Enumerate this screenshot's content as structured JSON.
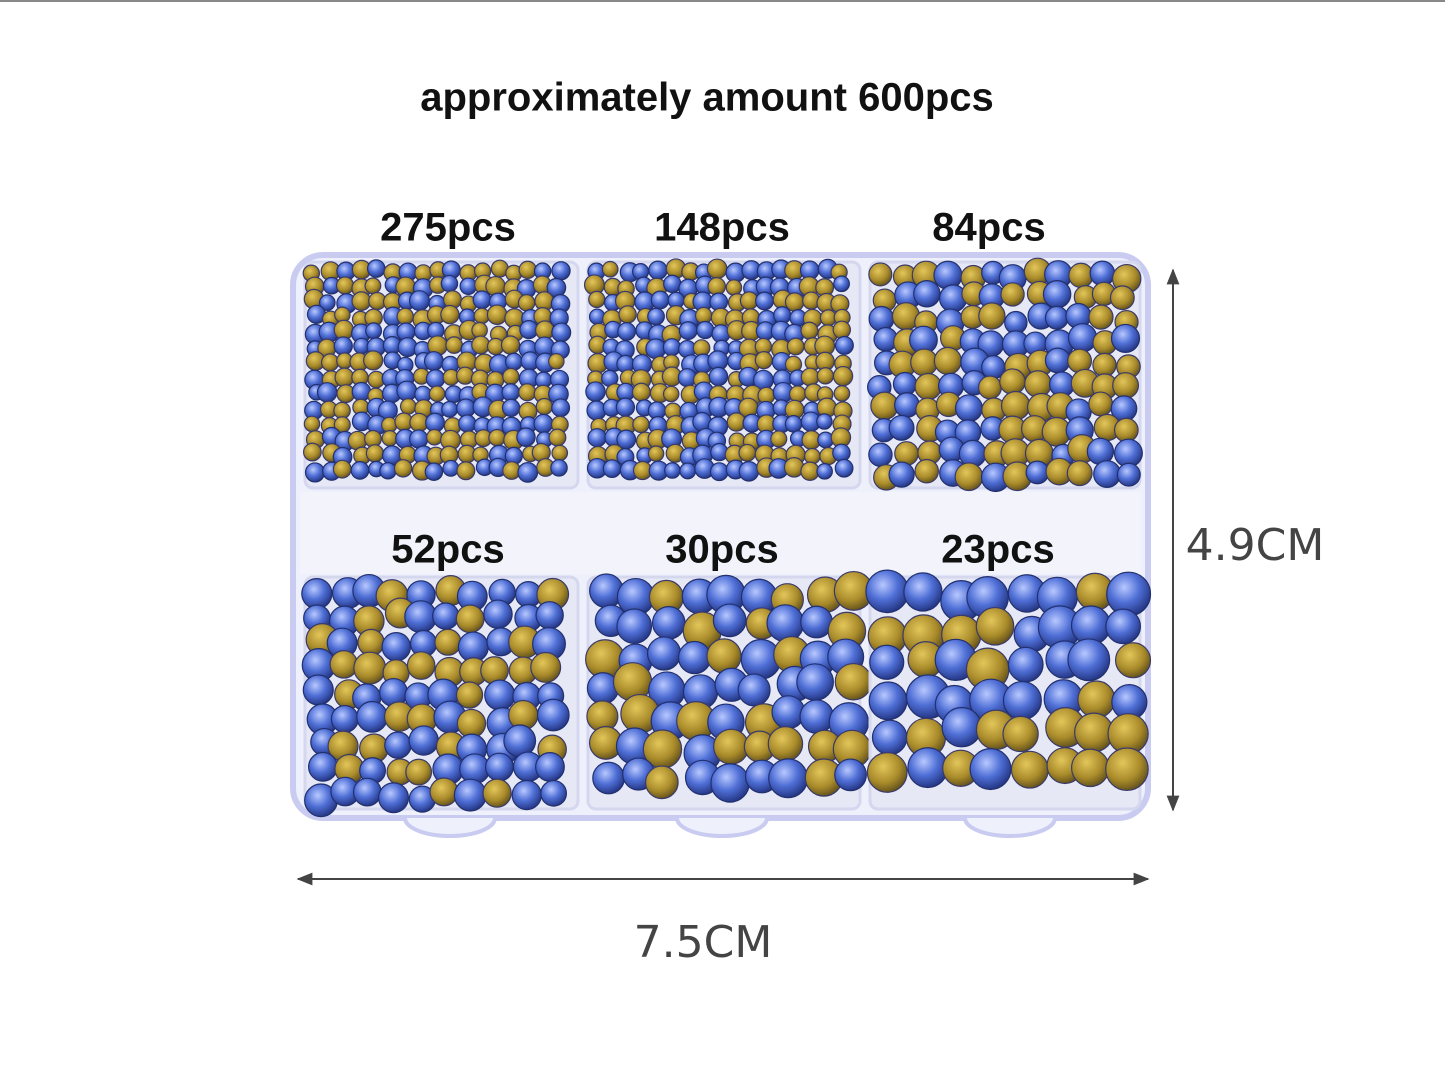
{
  "title": "approximately amount 600pcs",
  "compartments": [
    {
      "label": "275pcs"
    },
    {
      "label": "148pcs"
    },
    {
      "label": "84pcs"
    },
    {
      "label": "52pcs"
    },
    {
      "label": "30pcs"
    },
    {
      "label": "23pcs"
    }
  ],
  "dimensions": {
    "height": "4.9CM",
    "width": "7.5CM"
  }
}
